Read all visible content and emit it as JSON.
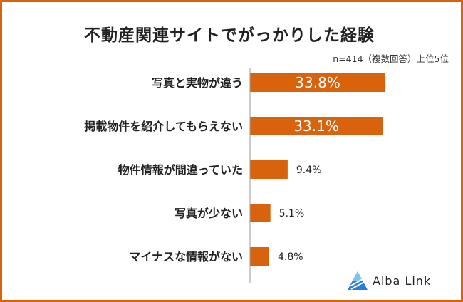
{
  "title": "不動産関連サイトでがっかりした経験",
  "note": "n=414（複数回答）上位5位",
  "logo": {
    "text": "Alba Link",
    "icon": "alba-link-triangle-icon"
  },
  "colors": {
    "bar": "#d9620c",
    "frame": "#d9620c",
    "axis": "#999999"
  },
  "chart_data": {
    "type": "bar",
    "orientation": "horizontal",
    "title": "不動産関連サイトでがっかりした経験",
    "categories": [
      "写真と実物が違う",
      "掲載物件を紹介してもらえない",
      "物件情報が間違っていた",
      "写真が少ない",
      "マイナスな情報がない"
    ],
    "values": [
      33.8,
      33.1,
      9.4,
      5.1,
      4.8
    ],
    "value_labels": [
      "33.8%",
      "33.1%",
      "9.4%",
      "5.1%",
      "4.8%"
    ],
    "unit": "%",
    "xlim": [
      0,
      40
    ]
  }
}
